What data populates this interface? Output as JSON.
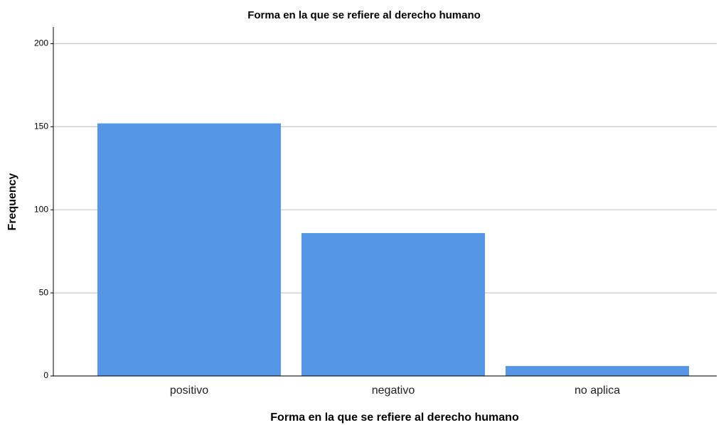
{
  "chart_data": {
    "type": "bar",
    "title": "Forma en la que se refiere al derecho humano",
    "x_label": "Forma en la que se refiere al derecho humano",
    "y_label": "Frequency",
    "categories": [
      "positivo",
      "negativo",
      "no aplica"
    ],
    "values": [
      152,
      86,
      6
    ],
    "color": "#5596e6",
    "ylim": [
      0,
      210
    ],
    "yticks": [
      0,
      50,
      100,
      150,
      200
    ],
    "grid": true
  }
}
